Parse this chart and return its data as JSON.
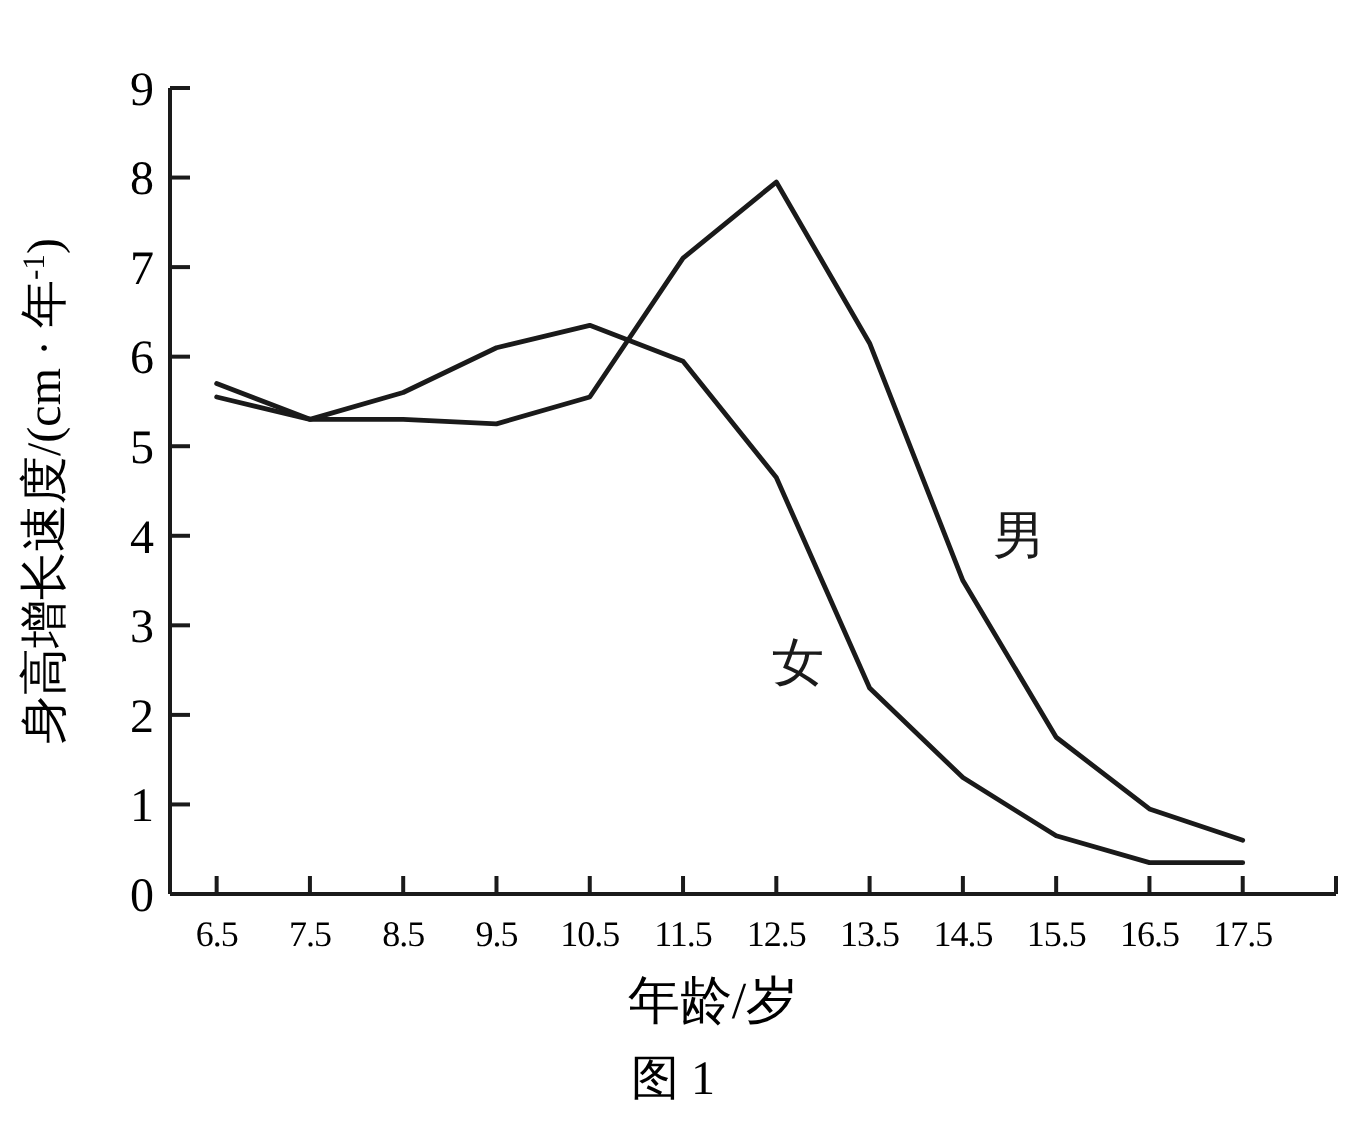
{
  "chart_data": {
    "type": "line",
    "xlabel": "年龄/岁",
    "ylabel": "身高增长速度/(cm · 年$^{-1}$)",
    "annotations": [
      "图 1"
    ],
    "x": [
      6.5,
      7.5,
      8.5,
      9.5,
      10.5,
      11.5,
      12.5,
      13.5,
      14.5,
      15.5,
      16.5,
      17.5
    ],
    "series": [
      {
        "name": "男",
        "color": "#1a1a1a",
        "values": [
          5.55,
          5.3,
          5.3,
          5.25,
          5.55,
          7.1,
          7.95,
          6.15,
          3.5,
          1.75,
          0.95,
          0.6
        ]
      },
      {
        "name": "女",
        "color": "#1a1a1a",
        "values": [
          5.7,
          5.3,
          5.6,
          6.1,
          6.35,
          5.95,
          4.65,
          2.3,
          1.3,
          0.65,
          0.35,
          0.35
        ]
      }
    ],
    "xlim": [
      6,
      18.5
    ],
    "xticks": [
      6.5,
      7.5,
      8.5,
      9.5,
      10.5,
      11.5,
      12.5,
      13.5,
      14.5,
      15.5,
      16.5,
      17.5,
      {
        "value": 18.5,
        "label": null
      }
    ],
    "ylim": [
      0,
      9
    ],
    "yticks": [
      0,
      1,
      2,
      3,
      4,
      5,
      6,
      7,
      8,
      9
    ],
    "grid": false,
    "marker": "none",
    "line_style": "solid"
  }
}
